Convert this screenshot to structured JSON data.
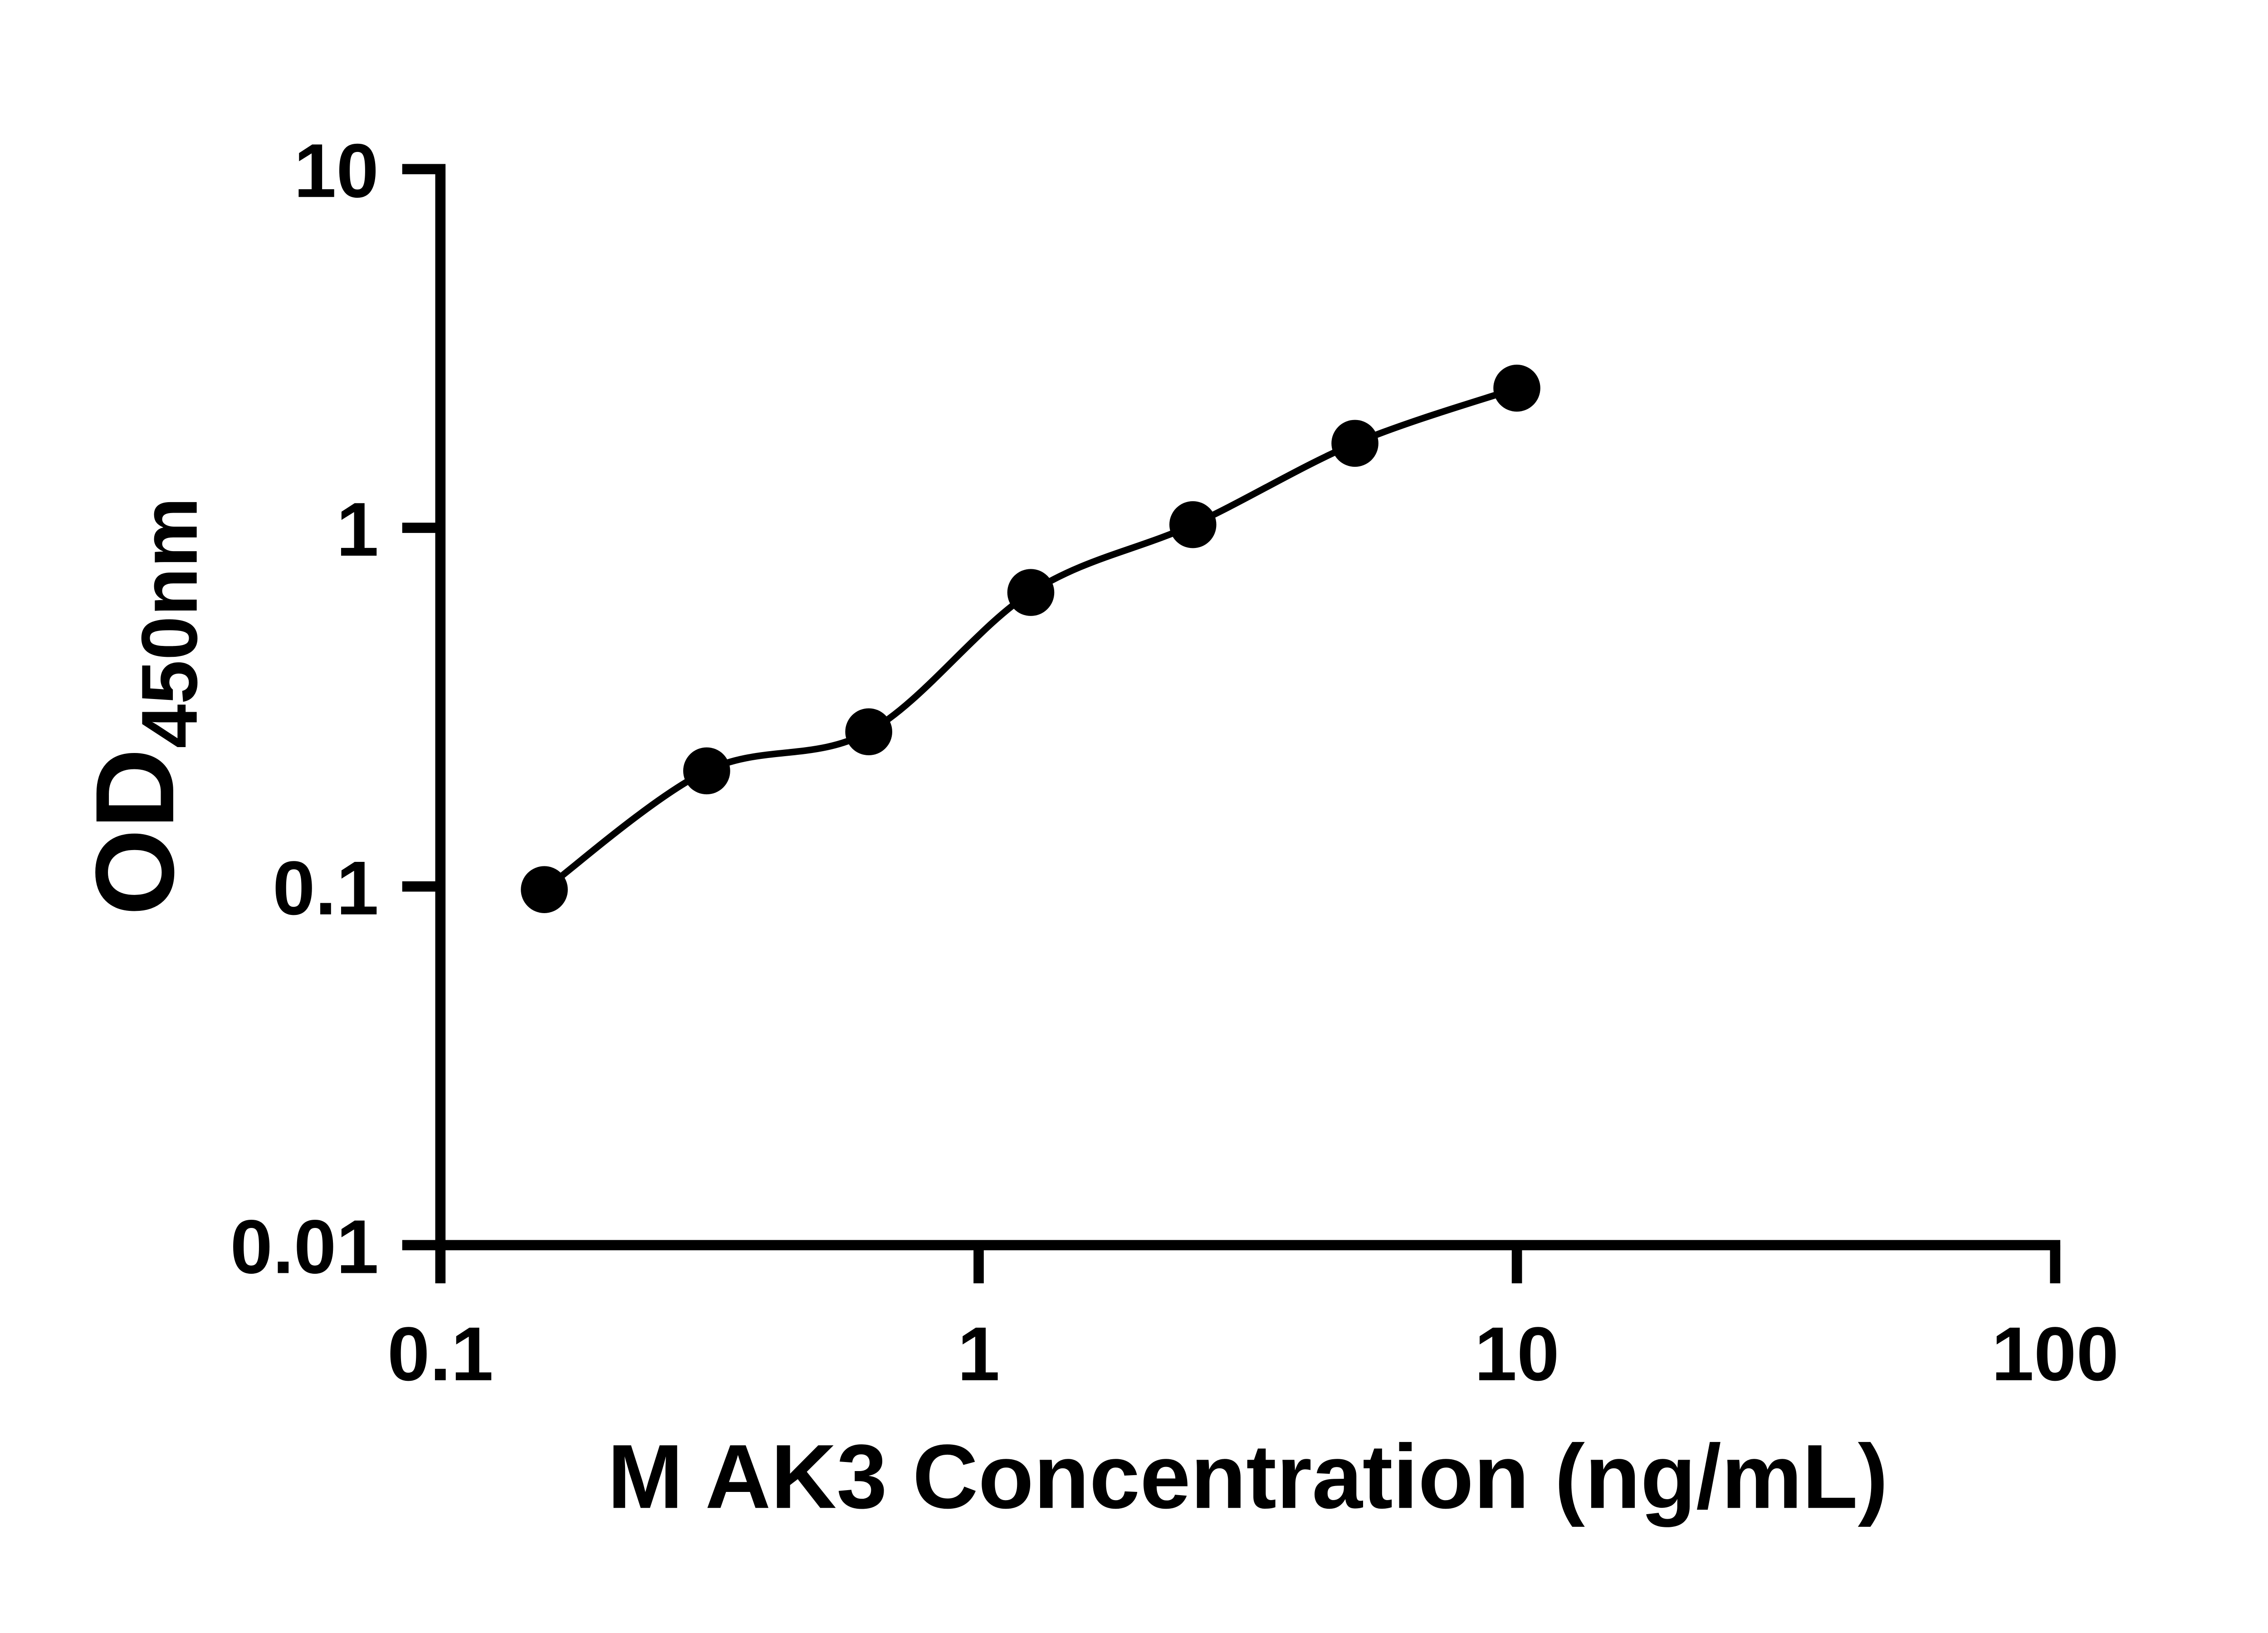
{
  "chart_data": {
    "type": "scatter",
    "title": "",
    "xlabel": "M AK3 Concentration (ng/mL)",
    "ylabel": "OD",
    "ylabel_subscript": "450nm",
    "x_scale": "log",
    "y_scale": "log",
    "xlim": [
      0.1,
      100
    ],
    "ylim": [
      0.01,
      10
    ],
    "x_ticks": [
      0.1,
      1,
      10,
      100
    ],
    "x_tick_labels": [
      "0.1",
      "1",
      "10",
      "100"
    ],
    "y_ticks": [
      0.01,
      0.1,
      1,
      10
    ],
    "y_tick_labels": [
      "0.01",
      "0.1",
      "1",
      "10"
    ],
    "points": [
      {
        "x": 0.156,
        "y": 0.098
      },
      {
        "x": 0.3125,
        "y": 0.21
      },
      {
        "x": 0.625,
        "y": 0.27
      },
      {
        "x": 1.25,
        "y": 0.66
      },
      {
        "x": 2.5,
        "y": 1.02
      },
      {
        "x": 5,
        "y": 1.72
      },
      {
        "x": 10,
        "y": 2.45
      }
    ],
    "curve_style": "smooth-fit-through-points",
    "marker_shape": "filled-circle",
    "marker_color": "#000000",
    "line_color": "#000000",
    "axis_color": "#000000",
    "background_color": "#ffffff",
    "grid": false,
    "legend": null
  }
}
